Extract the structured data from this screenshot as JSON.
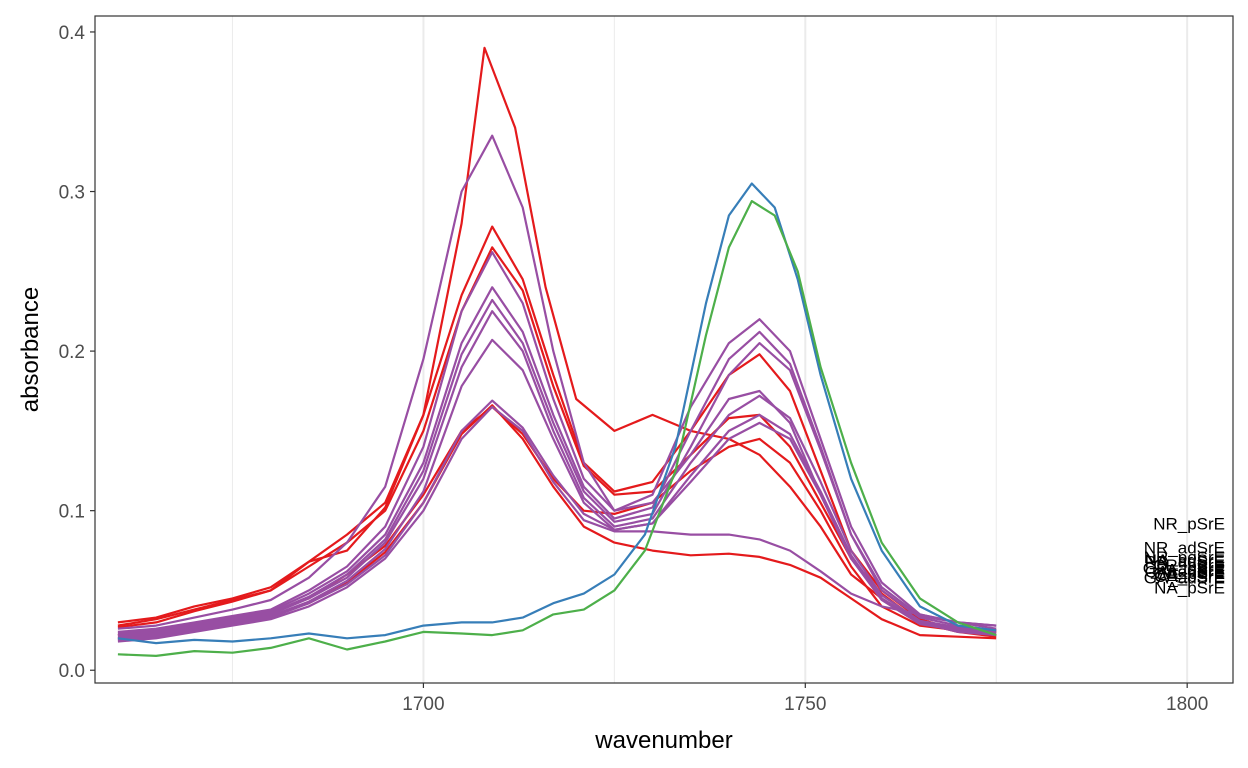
{
  "chart_data": {
    "type": "line",
    "title": "",
    "xlabel": "wavenumber",
    "ylabel": "absorbance",
    "xlim": [
      1657,
      1806
    ],
    "ylim": [
      -0.008,
      0.41
    ],
    "x_ticks": [
      1700,
      1750,
      1800
    ],
    "x_tick_labels": [
      "1700",
      "1750",
      "1800"
    ],
    "x_minor_gridlines": [
      1675,
      1725,
      1775
    ],
    "y_ticks": [
      0.0,
      0.1,
      0.2,
      0.3,
      0.4
    ],
    "y_tick_labels": [
      "0.0",
      "0.1",
      "0.2",
      "0.3",
      "0.4"
    ],
    "grid": "vertical only",
    "legend": "none",
    "colors": {
      "red": "#e41a1c",
      "purple": "#984ea3",
      "blue": "#377eb8",
      "green": "#4daf4a",
      "grid": "#ebebeb",
      "panel_border": "#333333"
    },
    "end_labels": [
      {
        "text": "NR_pSrE",
        "y": 0.092
      },
      {
        "text": "NR_adSrE",
        "y": 0.077
      },
      {
        "text": "NR_poSrE",
        "y": 0.071
      },
      {
        "text": "NA_adSrE",
        "y": 0.069
      },
      {
        "text": "PR_adSrE",
        "y": 0.068
      },
      {
        "text": "CR_pSrE",
        "y": 0.066
      },
      {
        "text": "GR_adSrE",
        "y": 0.064
      },
      {
        "text": "PA_pSrE",
        "y": 0.063
      },
      {
        "text": "CA_adSrE",
        "y": 0.062
      },
      {
        "text": "GA_pSrE",
        "y": 0.061
      },
      {
        "text": "CA_pSrE",
        "y": 0.059
      },
      {
        "text": "GA_adSrE",
        "y": 0.058
      },
      {
        "text": "NA_pSrE",
        "y": 0.052
      }
    ],
    "series": [
      {
        "color": "#e41a1c",
        "x": [
          1660,
          1665,
          1670,
          1675,
          1680,
          1685,
          1690,
          1695,
          1700,
          1705,
          1708,
          1712,
          1716,
          1720,
          1725,
          1730,
          1735,
          1740,
          1744,
          1748,
          1752,
          1756,
          1760,
          1765,
          1770,
          1775
        ],
        "y": [
          0.027,
          0.03,
          0.037,
          0.043,
          0.05,
          0.068,
          0.075,
          0.102,
          0.16,
          0.28,
          0.39,
          0.34,
          0.24,
          0.17,
          0.15,
          0.16,
          0.15,
          0.145,
          0.135,
          0.115,
          0.09,
          0.06,
          0.045,
          0.03,
          0.026,
          0.025
        ]
      },
      {
        "color": "#e41a1c",
        "x": [
          1660,
          1665,
          1670,
          1675,
          1680,
          1685,
          1690,
          1695,
          1700,
          1705,
          1709,
          1713,
          1717,
          1721,
          1725,
          1730,
          1735,
          1740,
          1744,
          1748,
          1752,
          1756,
          1760,
          1765,
          1770,
          1775
        ],
        "y": [
          0.03,
          0.033,
          0.04,
          0.045,
          0.052,
          0.068,
          0.085,
          0.105,
          0.16,
          0.235,
          0.278,
          0.245,
          0.185,
          0.13,
          0.112,
          0.118,
          0.15,
          0.185,
          0.198,
          0.175,
          0.125,
          0.075,
          0.05,
          0.032,
          0.025,
          0.022
        ]
      },
      {
        "color": "#e41a1c",
        "x": [
          1660,
          1665,
          1670,
          1675,
          1680,
          1685,
          1690,
          1695,
          1700,
          1705,
          1709,
          1713,
          1717,
          1721,
          1725,
          1730,
          1735,
          1740,
          1744,
          1748,
          1752,
          1756,
          1760,
          1765,
          1770,
          1775
        ],
        "y": [
          0.028,
          0.032,
          0.038,
          0.044,
          0.05,
          0.065,
          0.08,
          0.1,
          0.15,
          0.225,
          0.265,
          0.238,
          0.178,
          0.128,
          0.11,
          0.112,
          0.135,
          0.158,
          0.16,
          0.14,
          0.105,
          0.07,
          0.048,
          0.03,
          0.024,
          0.021
        ]
      },
      {
        "color": "#e41a1c",
        "x": [
          1660,
          1665,
          1670,
          1675,
          1680,
          1685,
          1690,
          1695,
          1700,
          1705,
          1709,
          1713,
          1717,
          1721,
          1725,
          1730,
          1735,
          1740,
          1744,
          1748,
          1752,
          1756,
          1760,
          1765,
          1770,
          1775
        ],
        "y": [
          0.022,
          0.025,
          0.028,
          0.032,
          0.036,
          0.045,
          0.06,
          0.078,
          0.11,
          0.15,
          0.165,
          0.148,
          0.12,
          0.1,
          0.098,
          0.105,
          0.125,
          0.14,
          0.145,
          0.13,
          0.1,
          0.065,
          0.04,
          0.028,
          0.025,
          0.024
        ]
      },
      {
        "color": "#e41a1c",
        "x": [
          1660,
          1665,
          1670,
          1675,
          1680,
          1685,
          1690,
          1695,
          1700,
          1705,
          1709,
          1713,
          1717,
          1721,
          1725,
          1730,
          1735,
          1740,
          1744,
          1748,
          1752,
          1756,
          1760,
          1765,
          1770,
          1775
        ],
        "y": [
          0.02,
          0.022,
          0.025,
          0.029,
          0.034,
          0.042,
          0.055,
          0.074,
          0.105,
          0.148,
          0.166,
          0.145,
          0.115,
          0.09,
          0.08,
          0.075,
          0.072,
          0.073,
          0.071,
          0.066,
          0.058,
          0.045,
          0.032,
          0.022,
          0.021,
          0.02
        ]
      },
      {
        "color": "#984ea3",
        "x": [
          1660,
          1665,
          1670,
          1675,
          1680,
          1685,
          1690,
          1695,
          1700,
          1705,
          1709,
          1713,
          1717,
          1721,
          1725,
          1730,
          1735,
          1740,
          1744,
          1748,
          1752,
          1756,
          1760,
          1765,
          1770,
          1775
        ],
        "y": [
          0.026,
          0.028,
          0.033,
          0.038,
          0.044,
          0.058,
          0.08,
          0.115,
          0.195,
          0.3,
          0.335,
          0.29,
          0.2,
          0.13,
          0.1,
          0.105,
          0.135,
          0.17,
          0.175,
          0.155,
          0.11,
          0.07,
          0.045,
          0.03,
          0.024,
          0.022
        ]
      },
      {
        "color": "#984ea3",
        "x": [
          1660,
          1665,
          1670,
          1675,
          1680,
          1685,
          1690,
          1695,
          1700,
          1705,
          1709,
          1713,
          1717,
          1721,
          1725,
          1730,
          1735,
          1740,
          1744,
          1748,
          1752,
          1756,
          1760,
          1765,
          1770,
          1775
        ],
        "y": [
          0.024,
          0.026,
          0.03,
          0.034,
          0.038,
          0.05,
          0.065,
          0.09,
          0.14,
          0.225,
          0.262,
          0.23,
          0.17,
          0.12,
          0.1,
          0.11,
          0.165,
          0.205,
          0.22,
          0.2,
          0.145,
          0.09,
          0.055,
          0.035,
          0.03,
          0.028
        ]
      },
      {
        "color": "#984ea3",
        "x": [
          1660,
          1665,
          1670,
          1675,
          1680,
          1685,
          1690,
          1695,
          1700,
          1705,
          1709,
          1713,
          1717,
          1721,
          1725,
          1730,
          1735,
          1740,
          1744,
          1748,
          1752,
          1756,
          1760,
          1765,
          1770,
          1775
        ],
        "y": [
          0.023,
          0.025,
          0.029,
          0.033,
          0.037,
          0.048,
          0.062,
          0.085,
          0.13,
          0.205,
          0.24,
          0.212,
          0.16,
          0.115,
          0.095,
          0.102,
          0.15,
          0.195,
          0.212,
          0.192,
          0.14,
          0.085,
          0.052,
          0.034,
          0.03,
          0.026
        ]
      },
      {
        "color": "#984ea3",
        "x": [
          1660,
          1665,
          1670,
          1675,
          1680,
          1685,
          1690,
          1695,
          1700,
          1705,
          1709,
          1713,
          1717,
          1721,
          1725,
          1730,
          1735,
          1740,
          1744,
          1748,
          1752,
          1756,
          1760,
          1765,
          1770,
          1775
        ],
        "y": [
          0.022,
          0.024,
          0.028,
          0.032,
          0.036,
          0.046,
          0.06,
          0.082,
          0.125,
          0.198,
          0.232,
          0.205,
          0.155,
          0.112,
          0.093,
          0.098,
          0.14,
          0.185,
          0.205,
          0.188,
          0.138,
          0.085,
          0.05,
          0.033,
          0.028,
          0.025
        ]
      },
      {
        "color": "#984ea3",
        "x": [
          1660,
          1665,
          1670,
          1675,
          1680,
          1685,
          1690,
          1695,
          1700,
          1705,
          1709,
          1713,
          1717,
          1721,
          1725,
          1730,
          1735,
          1740,
          1744,
          1748,
          1752,
          1756,
          1760,
          1765,
          1770,
          1775
        ],
        "y": [
          0.021,
          0.023,
          0.027,
          0.031,
          0.035,
          0.045,
          0.058,
          0.08,
          0.12,
          0.19,
          0.225,
          0.2,
          0.15,
          0.108,
          0.09,
          0.095,
          0.13,
          0.16,
          0.172,
          0.158,
          0.118,
          0.075,
          0.047,
          0.031,
          0.027,
          0.024
        ]
      },
      {
        "color": "#984ea3",
        "x": [
          1660,
          1665,
          1670,
          1675,
          1680,
          1685,
          1690,
          1695,
          1700,
          1705,
          1709,
          1713,
          1717,
          1721,
          1725,
          1730,
          1735,
          1740,
          1744,
          1748,
          1752,
          1756,
          1760,
          1765,
          1770,
          1775
        ],
        "y": [
          0.02,
          0.022,
          0.026,
          0.03,
          0.034,
          0.043,
          0.056,
          0.076,
          0.112,
          0.178,
          0.207,
          0.188,
          0.145,
          0.105,
          0.088,
          0.092,
          0.122,
          0.15,
          0.16,
          0.148,
          0.112,
          0.072,
          0.045,
          0.03,
          0.026,
          0.023
        ]
      },
      {
        "color": "#984ea3",
        "x": [
          1660,
          1665,
          1670,
          1675,
          1680,
          1685,
          1690,
          1695,
          1700,
          1705,
          1709,
          1713,
          1717,
          1721,
          1725,
          1730,
          1735,
          1740,
          1744,
          1748,
          1752,
          1756,
          1760,
          1765,
          1770,
          1775
        ],
        "y": [
          0.019,
          0.021,
          0.025,
          0.029,
          0.033,
          0.042,
          0.054,
          0.072,
          0.105,
          0.15,
          0.169,
          0.152,
          0.122,
          0.098,
          0.088,
          0.092,
          0.118,
          0.145,
          0.155,
          0.145,
          0.11,
          0.07,
          0.044,
          0.029,
          0.025,
          0.022
        ]
      },
      {
        "color": "#984ea3",
        "x": [
          1660,
          1665,
          1670,
          1675,
          1680,
          1685,
          1690,
          1695,
          1700,
          1705,
          1709,
          1713,
          1717,
          1721,
          1725,
          1730,
          1735,
          1740,
          1744,
          1748,
          1752,
          1756,
          1760,
          1765,
          1770,
          1775
        ],
        "y": [
          0.018,
          0.02,
          0.024,
          0.028,
          0.032,
          0.04,
          0.052,
          0.07,
          0.1,
          0.145,
          0.165,
          0.15,
          0.118,
          0.094,
          0.087,
          0.087,
          0.085,
          0.085,
          0.082,
          0.075,
          0.062,
          0.048,
          0.04,
          0.035,
          0.03,
          0.028
        ]
      },
      {
        "color": "#377eb8",
        "x": [
          1660,
          1665,
          1670,
          1675,
          1680,
          1685,
          1690,
          1695,
          1700,
          1705,
          1709,
          1713,
          1717,
          1721,
          1725,
          1729,
          1733,
          1737,
          1740,
          1743,
          1746,
          1749,
          1752,
          1756,
          1760,
          1765,
          1770,
          1775
        ],
        "y": [
          0.02,
          0.017,
          0.019,
          0.018,
          0.02,
          0.023,
          0.02,
          0.022,
          0.028,
          0.03,
          0.03,
          0.033,
          0.042,
          0.048,
          0.06,
          0.085,
          0.14,
          0.23,
          0.285,
          0.305,
          0.29,
          0.245,
          0.185,
          0.12,
          0.075,
          0.04,
          0.028,
          0.025
        ]
      },
      {
        "color": "#4daf4a",
        "x": [
          1660,
          1665,
          1670,
          1675,
          1680,
          1685,
          1690,
          1695,
          1700,
          1705,
          1709,
          1713,
          1717,
          1721,
          1725,
          1729,
          1733,
          1737,
          1740,
          1743,
          1746,
          1749,
          1752,
          1756,
          1760,
          1765,
          1770,
          1775
        ],
        "y": [
          0.01,
          0.009,
          0.012,
          0.011,
          0.014,
          0.02,
          0.013,
          0.018,
          0.024,
          0.023,
          0.022,
          0.025,
          0.035,
          0.038,
          0.05,
          0.075,
          0.125,
          0.21,
          0.265,
          0.294,
          0.285,
          0.25,
          0.19,
          0.13,
          0.08,
          0.045,
          0.03,
          0.022
        ]
      }
    ]
  }
}
